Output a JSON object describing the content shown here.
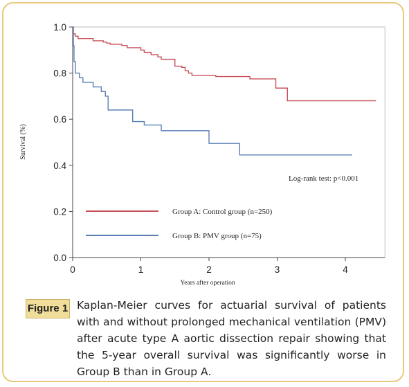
{
  "figure": {
    "label": "Figure 1",
    "caption": "Kaplan-Meier curves for actuarial survival of patients with and without prolonged mechanical ventilation (PMV) after acute type A aortic dissection repair showing that the 5-year overall survival was significantly worse in Group B than in Group A."
  },
  "chart_data": {
    "type": "line",
    "title": "",
    "xlabel": "Years after operation",
    "ylabel": "Survival  (%)",
    "xlim": [
      0,
      4.5
    ],
    "ylim": [
      0,
      1.0
    ],
    "x_ticks": [
      "0",
      "1",
      "2",
      "3",
      "4"
    ],
    "y_ticks": [
      "0.0",
      "0.2",
      "0.4",
      "0.6",
      "0.8",
      "1.0"
    ],
    "annotation": "Log-rank test: p<0.001",
    "grid": false,
    "legend_placement": "center-left",
    "series": [
      {
        "name": "Group A: Control group (n=250)",
        "color": "#c8505a",
        "x": [
          0,
          0.01,
          0.04,
          0.08,
          0.3,
          0.45,
          0.5,
          0.55,
          0.72,
          0.8,
          1.0,
          1.05,
          1.15,
          1.25,
          1.3,
          1.5,
          1.6,
          1.65,
          1.7,
          1.75,
          2.1,
          2.6,
          2.98,
          3.15,
          4.45
        ],
        "y": [
          1.0,
          0.97,
          0.96,
          0.95,
          0.94,
          0.935,
          0.93,
          0.925,
          0.92,
          0.91,
          0.9,
          0.89,
          0.88,
          0.87,
          0.86,
          0.83,
          0.825,
          0.81,
          0.8,
          0.79,
          0.785,
          0.775,
          0.735,
          0.68,
          0.68
        ]
      },
      {
        "name": "Group B: PMV group (n=75)",
        "color": "#5b7fb6",
        "x": [
          0,
          0.01,
          0.02,
          0.04,
          0.1,
          0.15,
          0.3,
          0.42,
          0.48,
          0.52,
          0.7,
          0.88,
          1.05,
          1.3,
          2.0,
          2.45,
          4.1
        ],
        "y": [
          1.0,
          0.92,
          0.85,
          0.8,
          0.78,
          0.76,
          0.74,
          0.72,
          0.7,
          0.64,
          0.64,
          0.59,
          0.575,
          0.55,
          0.495,
          0.445,
          0.445
        ]
      }
    ]
  }
}
